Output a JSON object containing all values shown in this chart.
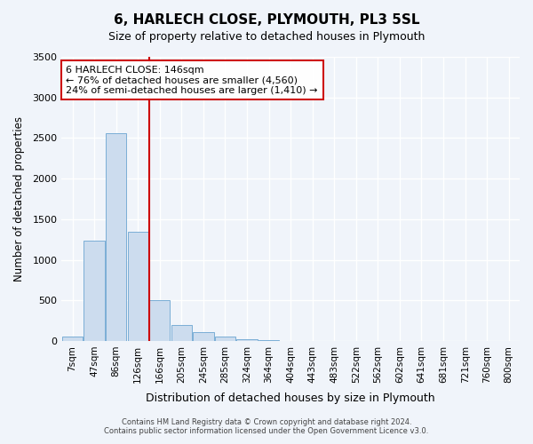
{
  "title": "6, HARLECH CLOSE, PLYMOUTH, PL3 5SL",
  "subtitle": "Size of property relative to detached houses in Plymouth",
  "xlabel": "Distribution of detached houses by size in Plymouth",
  "ylabel": "Number of detached properties",
  "bar_labels": [
    "7sqm",
    "47sqm",
    "86sqm",
    "126sqm",
    "166sqm",
    "205sqm",
    "245sqm",
    "285sqm",
    "324sqm",
    "364sqm",
    "404sqm",
    "443sqm",
    "483sqm",
    "522sqm",
    "562sqm",
    "602sqm",
    "641sqm",
    "681sqm",
    "721sqm",
    "760sqm",
    "800sqm"
  ],
  "bar_values": [
    50,
    1230,
    2560,
    1340,
    500,
    200,
    105,
    50,
    20,
    5,
    2,
    2,
    2,
    0,
    0,
    0,
    0,
    0,
    0,
    0,
    0
  ],
  "bar_color": "#ccdcee",
  "bar_edge_color": "#7aaed6",
  "vline_x": 4,
  "vline_color": "#cc0000",
  "ylim": [
    0,
    3500
  ],
  "annotation_title": "6 HARLECH CLOSE: 146sqm",
  "annotation_line1": "← 76% of detached houses are smaller (4,560)",
  "annotation_line2": "24% of semi-detached houses are larger (1,410) →",
  "annotation_box_edge": "#cc0000",
  "footer_line1": "Contains HM Land Registry data © Crown copyright and database right 2024.",
  "footer_line2": "Contains public sector information licensed under the Open Government Licence v3.0.",
  "bg_color": "#f0f4fa",
  "plot_bg_color": "#f0f4fa",
  "grid_color": "#ffffff"
}
